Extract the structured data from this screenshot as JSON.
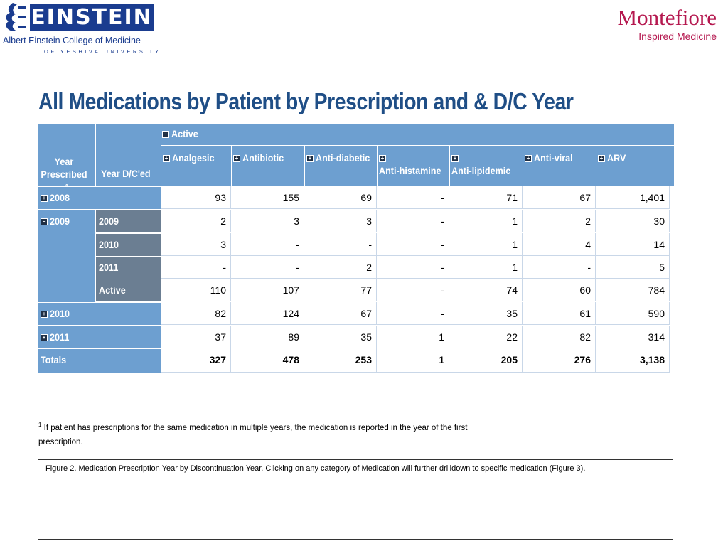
{
  "header": {
    "einstein": {
      "name": "EINSTEIN",
      "subtitle": "Albert Einstein College of Medicine",
      "subtitle2": "OF YESHIVA UNIVERSITY"
    },
    "montefiore": {
      "name": "Montefiore",
      "tagline": "Inspired Medicine"
    },
    "colors": {
      "einstein_blue": "#1a3c8f",
      "montefiore_red": "#b5184f"
    }
  },
  "title": "All Medications by Patient by Prescription and & D/C Year",
  "table": {
    "group_header": "Active",
    "row_headers": {
      "year_prescribed": "Year Prescribed",
      "year_prescribed_sup": "1",
      "year_dced": "Year D/C'ed"
    },
    "columns": [
      "Analgesic",
      "Antibiotic",
      "Anti-diabetic",
      "Anti-histamine",
      "Anti-lipidemic",
      "Anti-viral",
      "ARV"
    ],
    "rows": [
      {
        "year": "2008",
        "sub": "",
        "values": [
          "93",
          "155",
          "69",
          "-",
          "71",
          "67",
          "1,401"
        ]
      },
      {
        "year": "2009",
        "sub": "2009",
        "values": [
          "2",
          "3",
          "3",
          "-",
          "1",
          "2",
          "30"
        ]
      },
      {
        "year": "",
        "sub": "2010",
        "values": [
          "3",
          "-",
          "-",
          "-",
          "1",
          "4",
          "14"
        ]
      },
      {
        "year": "",
        "sub": "2011",
        "values": [
          "-",
          "-",
          "2",
          "-",
          "1",
          "-",
          "5"
        ]
      },
      {
        "year": "",
        "sub": "Active",
        "values": [
          "110",
          "107",
          "77",
          "-",
          "74",
          "60",
          "784"
        ]
      },
      {
        "year": "2010",
        "sub": "",
        "values": [
          "82",
          "124",
          "67",
          "-",
          "35",
          "61",
          "590"
        ]
      },
      {
        "year": "2011",
        "sub": "",
        "values": [
          "37",
          "89",
          "35",
          "1",
          "22",
          "82",
          "314"
        ]
      }
    ],
    "totals": {
      "label": "Totals",
      "values": [
        "327",
        "478",
        "253",
        "1",
        "205",
        "276",
        "3,138"
      ]
    }
  },
  "footnote": {
    "sup": "1",
    "text": " If patient has prescriptions for the same medication in multiple years, the medication is reported in the year of the first prescription."
  },
  "caption": "Figure 2. Medication Prescription Year by Discontinuation Year. Clicking on any category of Medication will further drilldown to specific medication (Figure 3)."
}
